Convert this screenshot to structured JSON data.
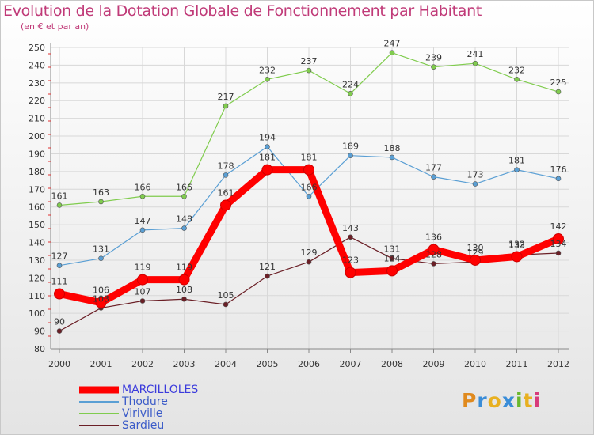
{
  "title": "Evolution de la Dotation Globale de Fonctionnement par Habitant",
  "subtitle": "(en € et par an)",
  "logo": {
    "text": "Proxiti",
    "colors": [
      "#e08a1e",
      "#3a8dd8",
      "#e8b020",
      "#3a8dd8",
      "#6ab82e",
      "#e8b020",
      "#d83a7a"
    ]
  },
  "chart_data": {
    "type": "line",
    "title": "Evolution de la Dotation Globale de Fonctionnement par Habitant",
    "subtitle": "(en € et par an)",
    "xlabel": "",
    "ylabel": "",
    "ylim": [
      80,
      250
    ],
    "y_ticks": [
      80,
      90,
      100,
      110,
      120,
      130,
      140,
      150,
      160,
      170,
      180,
      190,
      200,
      210,
      220,
      230,
      240,
      250
    ],
    "categories": [
      "2000",
      "2001",
      "2002",
      "2003",
      "2004",
      "2005",
      "2006",
      "2007",
      "2008",
      "2009",
      "2010",
      "2011",
      "2012"
    ],
    "legend_position": "bottom-left",
    "series": [
      {
        "name": "MARCILLOLES",
        "color": "#ff0000",
        "values": [
          111,
          106,
          119,
          119,
          161,
          181,
          181,
          123,
          124,
          136,
          130,
          132,
          142
        ]
      },
      {
        "name": "Thodure",
        "color": "#5a9fd4",
        "values": [
          127,
          131,
          147,
          148,
          178,
          194,
          166,
          189,
          188,
          177,
          173,
          181,
          176
        ]
      },
      {
        "name": "Viriville",
        "color": "#80cc4e",
        "values": [
          161,
          163,
          166,
          166,
          217,
          232,
          237,
          224,
          247,
          239,
          241,
          232,
          225
        ]
      },
      {
        "name": "Sardieu",
        "color": "#6b1f26",
        "values": [
          90,
          103,
          107,
          108,
          105,
          121,
          129,
          143,
          131,
          128,
          129,
          133,
          134
        ]
      }
    ]
  }
}
